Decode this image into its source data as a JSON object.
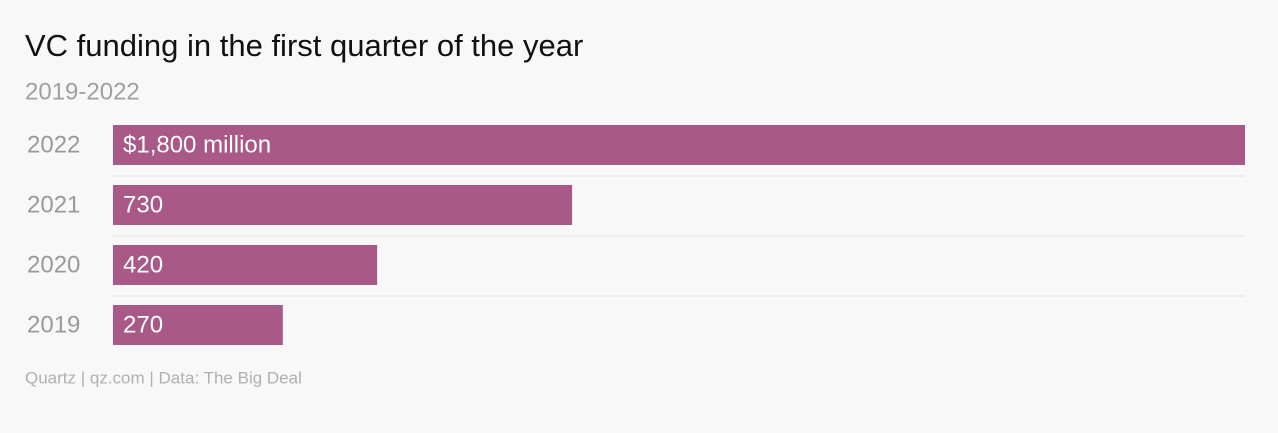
{
  "chart_data": {
    "type": "bar",
    "orientation": "horizontal",
    "title": "VC funding in the first quarter of the year",
    "subtitle": "2019-2022",
    "categories": [
      "2022",
      "2021",
      "2020",
      "2019"
    ],
    "values": [
      1800,
      730,
      420,
      270
    ],
    "value_labels": [
      "$1,800 million",
      "730",
      "420",
      "270"
    ],
    "color": "#a95987",
    "xlim": [
      0,
      1800
    ],
    "source": "Quartz | qz.com | Data: The Big Deal"
  }
}
